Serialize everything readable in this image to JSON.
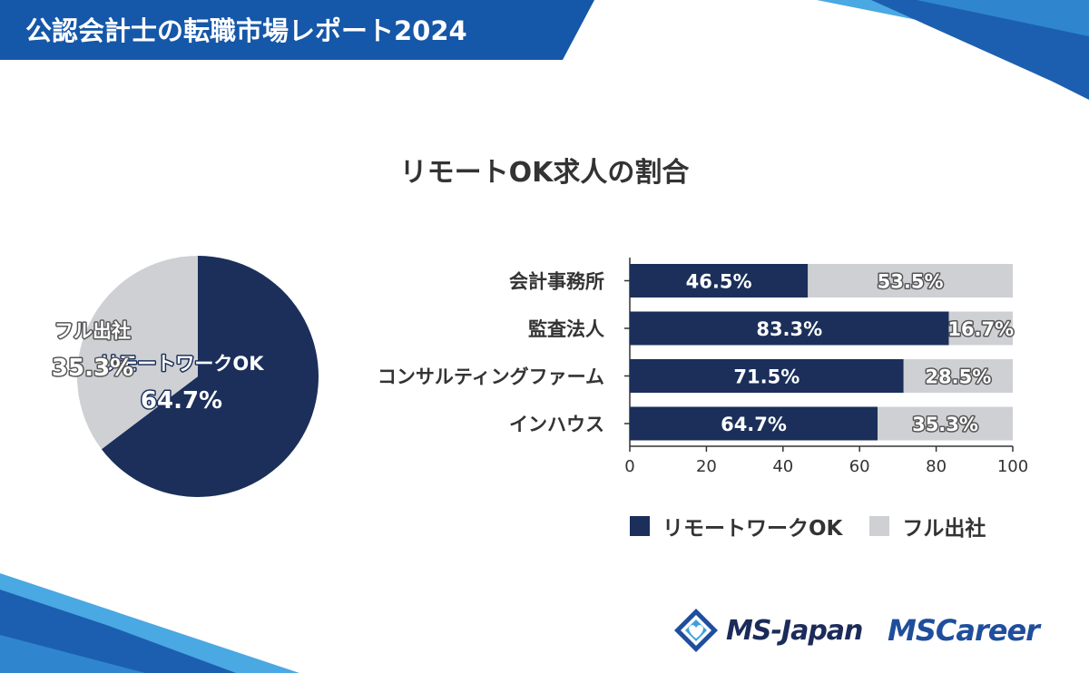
{
  "header": {
    "title": "公認会計士の転職市場レポート2024"
  },
  "colors": {
    "remote": "#1b2f5a",
    "office": "#cfd0d4",
    "header_blue": "#1557a8",
    "accent_light": "#3ea0de"
  },
  "chart_data": [
    {
      "type": "pie",
      "title": "リモートOK求人の割合",
      "slices": [
        {
          "label": "リモートワークOK",
          "value": 64.7,
          "value_label": "64.7%"
        },
        {
          "label": "フル出社",
          "value": 35.3,
          "value_label": "35.3%"
        }
      ]
    },
    {
      "type": "bar",
      "orientation": "horizontal",
      "stacked": true,
      "categories": [
        "会計事務所",
        "監査法人",
        "コンサルティングファーム",
        "インハウス"
      ],
      "series": [
        {
          "name": "リモートワークOK",
          "values": [
            46.5,
            83.3,
            71.5,
            64.7
          ],
          "labels": [
            "46.5%",
            "83.3%",
            "71.5%",
            "64.7%"
          ]
        },
        {
          "name": "フル出社",
          "values": [
            53.5,
            16.7,
            28.5,
            35.3
          ],
          "labels": [
            "53.5%",
            "16.7%",
            "28.5%",
            "35.3%"
          ]
        }
      ],
      "xlim": [
        0,
        100
      ],
      "xticks": [
        "0",
        "20",
        "40",
        "60",
        "80",
        "100"
      ],
      "legend_position": "bottom"
    }
  ],
  "logos": {
    "ms_japan": "MS-Japan",
    "ms_career_prefix": "MS",
    "ms_career_suffix": "Career"
  }
}
